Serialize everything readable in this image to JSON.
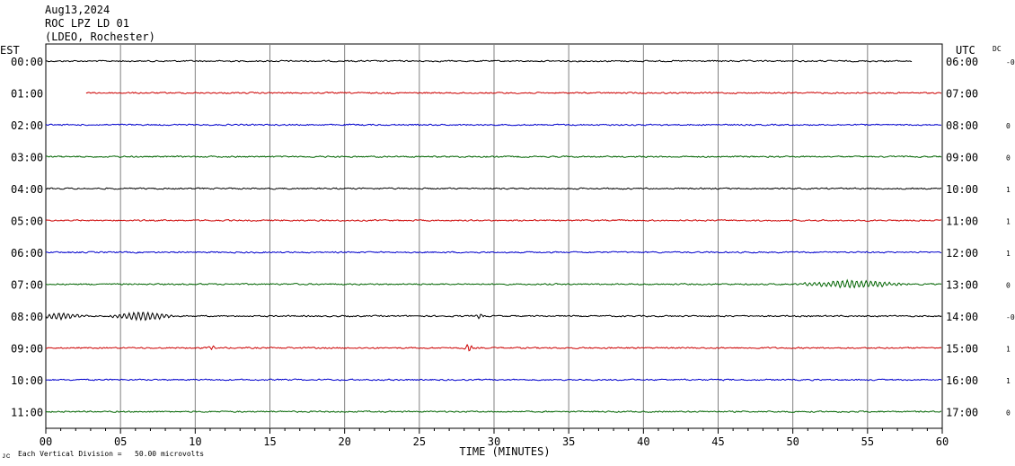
{
  "header": {
    "date": "Aug13,2024",
    "station": "ROC LPZ LD 01",
    "network": "(LDEO, Rochester)"
  },
  "left_timezone": "EST",
  "right_timezone": "UTC",
  "dc_label": "DC",
  "footer": {
    "scale_note": "Each Vertical Division =   50.00 microvolts",
    "corner_mark": "ᴊᴄ"
  },
  "colors": {
    "trace_cycle": [
      "#000000",
      "#cc0000",
      "#0000cc",
      "#006400"
    ],
    "grid": "#808080",
    "background": "#ffffff"
  },
  "chart_data": {
    "type": "line",
    "subtype": "helicorder",
    "xlabel": "TIME (MINUTES)",
    "xlim": [
      0,
      60
    ],
    "x_ticks": [
      "00",
      "05",
      "10",
      "15",
      "20",
      "25",
      "30",
      "35",
      "40",
      "45",
      "50",
      "55",
      "60"
    ],
    "grid": true,
    "rows": [
      {
        "left": "00:00",
        "right": "06:00",
        "dc": "-0",
        "start_min": 0,
        "end_min": 58,
        "events": []
      },
      {
        "left": "01:00",
        "right": "07:00",
        "dc": "",
        "start_min": 2.7,
        "end_min": 60,
        "events": []
      },
      {
        "left": "02:00",
        "right": "08:00",
        "dc": "0",
        "start_min": 0,
        "end_min": 60,
        "events": []
      },
      {
        "left": "03:00",
        "right": "09:00",
        "dc": "0",
        "start_min": 0,
        "end_min": 60,
        "events": []
      },
      {
        "left": "04:00",
        "right": "10:00",
        "dc": "1",
        "start_min": 0,
        "end_min": 60,
        "events": []
      },
      {
        "left": "05:00",
        "right": "11:00",
        "dc": "1",
        "start_min": 0,
        "end_min": 60,
        "events": []
      },
      {
        "left": "06:00",
        "right": "12:00",
        "dc": "1",
        "start_min": 0,
        "end_min": 60,
        "events": []
      },
      {
        "left": "07:00",
        "right": "13:00",
        "dc": "0",
        "start_min": 0,
        "end_min": 60,
        "events": [
          {
            "t": 54,
            "amp": 4.5,
            "width": 4
          }
        ]
      },
      {
        "left": "08:00",
        "right": "14:00",
        "dc": "-0",
        "start_min": 0,
        "end_min": 60,
        "events": [
          {
            "t": 1,
            "amp": 3.5,
            "width": 2
          },
          {
            "t": 6.5,
            "amp": 5,
            "width": 2.5
          },
          {
            "t": 29,
            "amp": 3,
            "width": 0.4
          }
        ]
      },
      {
        "left": "09:00",
        "right": "15:00",
        "dc": "1",
        "start_min": 0,
        "end_min": 60,
        "events": [
          {
            "t": 11.2,
            "amp": 2,
            "width": 0.4
          },
          {
            "t": 28.3,
            "amp": 4,
            "width": 0.4
          }
        ]
      },
      {
        "left": "10:00",
        "right": "16:00",
        "dc": "1",
        "start_min": 0,
        "end_min": 60,
        "events": []
      },
      {
        "left": "11:00",
        "right": "17:00",
        "dc": "0",
        "start_min": 0,
        "end_min": 60,
        "events": []
      }
    ]
  }
}
